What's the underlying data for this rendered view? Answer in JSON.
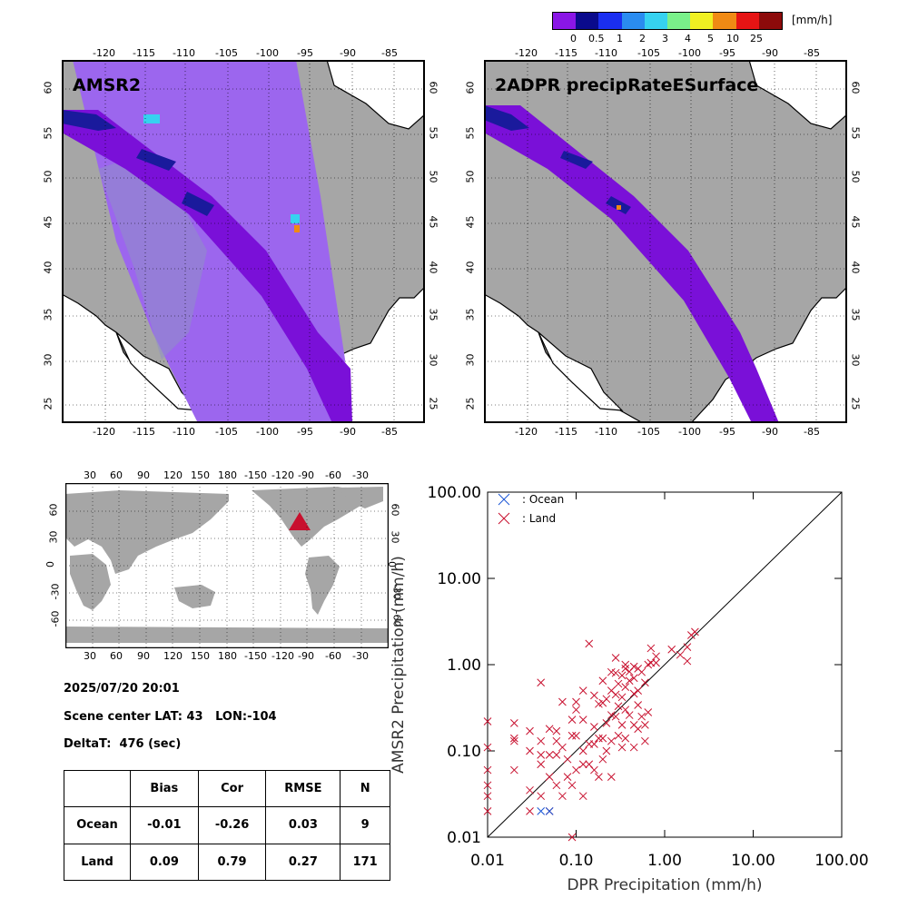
{
  "colorbar": {
    "unit": "[mm/h]",
    "labels": [
      "0",
      "0.5",
      "1",
      "2",
      "3",
      "4",
      "5",
      "10",
      "25"
    ],
    "colors": [
      "#8a16e6",
      "#0a0a8c",
      "#1a2ef0",
      "#2a8cf0",
      "#36d2f0",
      "#7af08a",
      "#f0f022",
      "#f08a14",
      "#e61414",
      "#8c0a0a"
    ]
  },
  "maps": [
    {
      "title": "AMSR2"
    },
    {
      "title": "2ADPR precipRateESurface"
    }
  ],
  "map_axes": {
    "lon_labels": [
      "-120",
      "-115",
      "-110",
      "-105",
      "-100",
      "-95",
      "-90",
      "-85"
    ],
    "lat_labels": [
      "25",
      "30",
      "35",
      "40",
      "45",
      "50",
      "55",
      "60"
    ]
  },
  "world_map": {
    "top_labels": [
      "30",
      "60",
      "90",
      "120",
      "150",
      "180",
      "-150",
      "-120",
      "-90",
      "-60",
      "-30"
    ],
    "bottom_labels": [
      "30",
      "60",
      "90",
      "120",
      "150",
      "180",
      "-150",
      "-120",
      "-90",
      "-60",
      "-30"
    ],
    "lat_labels": [
      "60",
      "30",
      "0",
      "-30",
      "-60"
    ],
    "marker": "red triangle"
  },
  "info": {
    "datetime": "2025/07/20 20:01",
    "scene_center": "Scene center LAT: 43   LON:-104",
    "delta_t": "DeltaT:  476 (sec)"
  },
  "stats_table": {
    "headers": [
      "",
      "Bias",
      "Cor",
      "RMSE",
      "N"
    ],
    "rows": [
      [
        "Ocean",
        "-0.01",
        "-0.26",
        "0.03",
        "9"
      ],
      [
        "Land",
        "0.09",
        "0.79",
        "0.27",
        "171"
      ]
    ]
  },
  "chart_data": {
    "type": "scatter",
    "xlabel": "DPR Precipitation (mm/h)",
    "ylabel": "AMSR2 Precipitation (mm/h)",
    "x_scale": "log",
    "y_scale": "log",
    "xlim": [
      0.01,
      100
    ],
    "ylim": [
      0.01,
      100
    ],
    "tick_labels": [
      "0.01",
      "0.10",
      "1.00",
      "10.00",
      "100.00"
    ],
    "reference_line": "1:1 diagonal",
    "legend": [
      {
        "name": ": Ocean",
        "color": "#1a56d6"
      },
      {
        "name": ": Land",
        "color": "#c8102e"
      }
    ],
    "series": [
      {
        "name": ": Ocean",
        "points": [
          [
            0.05,
            0.02
          ],
          [
            0.04,
            0.02
          ]
        ]
      },
      {
        "name": ": Land",
        "points": [
          [
            0.01,
            0.22
          ],
          [
            0.01,
            0.11
          ],
          [
            0.01,
            0.06
          ],
          [
            0.01,
            0.03
          ],
          [
            0.01,
            0.02
          ],
          [
            0.01,
            0.04
          ],
          [
            0.02,
            0.21
          ],
          [
            0.02,
            0.14
          ],
          [
            0.02,
            0.13
          ],
          [
            0.02,
            0.06
          ],
          [
            0.03,
            0.02
          ],
          [
            0.03,
            0.1
          ],
          [
            0.03,
            0.035
          ],
          [
            0.03,
            0.17
          ],
          [
            0.04,
            0.62
          ],
          [
            0.04,
            0.09
          ],
          [
            0.04,
            0.03
          ],
          [
            0.04,
            0.13
          ],
          [
            0.04,
            0.07
          ],
          [
            0.05,
            0.18
          ],
          [
            0.05,
            0.09
          ],
          [
            0.05,
            0.05
          ],
          [
            0.05,
            0.02
          ],
          [
            0.06,
            0.17
          ],
          [
            0.06,
            0.04
          ],
          [
            0.06,
            0.09
          ],
          [
            0.06,
            0.13
          ],
          [
            0.07,
            0.37
          ],
          [
            0.07,
            0.11
          ],
          [
            0.07,
            0.03
          ],
          [
            0.08,
            0.08
          ],
          [
            0.08,
            0.05
          ],
          [
            0.09,
            0.23
          ],
          [
            0.09,
            0.15
          ],
          [
            0.09,
            0.04
          ],
          [
            0.09,
            0.01
          ],
          [
            0.1,
            0.3
          ],
          [
            0.1,
            0.37
          ],
          [
            0.1,
            0.15
          ],
          [
            0.1,
            0.06
          ],
          [
            0.12,
            0.5
          ],
          [
            0.12,
            0.23
          ],
          [
            0.12,
            0.1
          ],
          [
            0.12,
            0.07
          ],
          [
            0.12,
            0.03
          ],
          [
            0.14,
            1.75
          ],
          [
            0.14,
            0.12
          ],
          [
            0.14,
            0.07
          ],
          [
            0.16,
            0.44
          ],
          [
            0.16,
            0.19
          ],
          [
            0.16,
            0.12
          ],
          [
            0.16,
            0.06
          ],
          [
            0.18,
            0.35
          ],
          [
            0.18,
            0.14
          ],
          [
            0.18,
            0.05
          ],
          [
            0.2,
            0.65
          ],
          [
            0.2,
            0.36
          ],
          [
            0.2,
            0.14
          ],
          [
            0.2,
            0.08
          ],
          [
            0.22,
            0.4
          ],
          [
            0.22,
            0.21
          ],
          [
            0.22,
            0.1
          ],
          [
            0.25,
            0.82
          ],
          [
            0.25,
            0.5
          ],
          [
            0.25,
            0.26
          ],
          [
            0.25,
            0.13
          ],
          [
            0.25,
            0.05
          ],
          [
            0.28,
            1.2
          ],
          [
            0.28,
            0.8
          ],
          [
            0.28,
            0.45
          ],
          [
            0.28,
            0.25
          ],
          [
            0.3,
            0.6
          ],
          [
            0.3,
            0.33
          ],
          [
            0.3,
            0.15
          ],
          [
            0.33,
            0.75
          ],
          [
            0.33,
            0.42
          ],
          [
            0.33,
            0.2
          ],
          [
            0.33,
            0.11
          ],
          [
            0.36,
            1.0
          ],
          [
            0.36,
            0.9
          ],
          [
            0.36,
            0.55
          ],
          [
            0.36,
            0.3
          ],
          [
            0.36,
            0.14
          ],
          [
            0.4,
            0.65
          ],
          [
            0.4,
            0.83
          ],
          [
            0.4,
            0.26
          ],
          [
            0.45,
            0.95
          ],
          [
            0.45,
            0.7
          ],
          [
            0.45,
            0.46
          ],
          [
            0.45,
            0.2
          ],
          [
            0.45,
            0.11
          ],
          [
            0.5,
            0.9
          ],
          [
            0.5,
            0.5
          ],
          [
            0.5,
            0.34
          ],
          [
            0.5,
            0.18
          ],
          [
            0.55,
            0.82
          ],
          [
            0.55,
            0.25
          ],
          [
            0.6,
            0.62
          ],
          [
            0.6,
            0.2
          ],
          [
            0.6,
            0.13
          ],
          [
            0.65,
            1.0
          ],
          [
            0.65,
            0.28
          ],
          [
            0.7,
            1.05
          ],
          [
            0.7,
            1.55
          ],
          [
            0.8,
            1.25
          ],
          [
            0.8,
            1.05
          ],
          [
            1.2,
            1.5
          ],
          [
            1.5,
            1.3
          ],
          [
            1.8,
            1.6
          ],
          [
            1.8,
            1.1
          ],
          [
            2.0,
            2.2
          ],
          [
            2.2,
            2.4
          ]
        ]
      }
    ]
  }
}
